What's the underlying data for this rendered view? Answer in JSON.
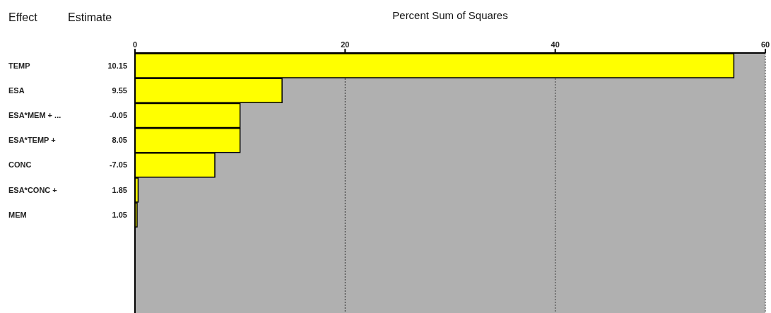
{
  "chart_data": {
    "type": "bar",
    "orientation": "horizontal",
    "xlabel": "Percent Sum of Squares",
    "ylabel": "Effect",
    "y2label": "Estimate",
    "categories": [
      "TEMP",
      "ESA",
      "ESA*MEM + ...",
      "ESA*TEMP +",
      "CONC",
      "ESA*CONC +",
      "MEM"
    ],
    "y2_categories": [
      "10.15",
      "9.55",
      "-0.05",
      "8.05",
      "-7.05",
      "1.85",
      "1.05"
    ],
    "values": [
      57,
      14,
      10,
      10,
      7.6,
      0.3,
      0.2
    ],
    "color": "#ffff00",
    "xlim": [
      0,
      60
    ],
    "xticks": [
      0,
      20,
      40,
      60
    ],
    "grid": "x"
  }
}
